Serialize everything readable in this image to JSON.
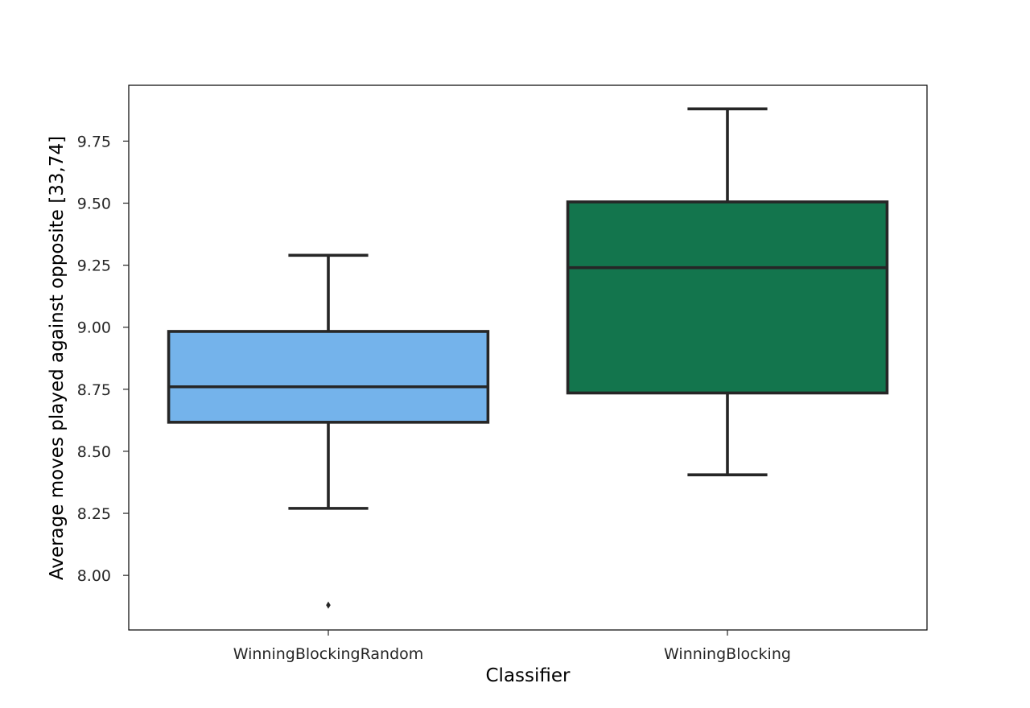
{
  "chart_data": {
    "type": "box",
    "title": "",
    "xlabel": "Classifier",
    "ylabel": "Average moves played against opposite [33,74]",
    "ylim": [
      7.78,
      9.975
    ],
    "yticks": [
      "8.00",
      "8.25",
      "8.50",
      "8.75",
      "9.00",
      "9.25",
      "9.50",
      "9.75"
    ],
    "categories": [
      "WinningBlockingRandom",
      "WinningBlocking"
    ],
    "boxes": [
      {
        "category": "WinningBlockingRandom",
        "color": "#74b3eb",
        "whisker_low": 8.27,
        "q1": 8.617,
        "median": 8.76,
        "q3": 8.983,
        "whisker_high": 9.29,
        "outliers": [
          7.88
        ]
      },
      {
        "category": "WinningBlocking",
        "color": "#13754d",
        "whisker_low": 8.405,
        "q1": 8.735,
        "median": 9.24,
        "q3": 9.505,
        "whisker_high": 9.88,
        "outliers": []
      }
    ],
    "grid": false,
    "legend": "none"
  }
}
